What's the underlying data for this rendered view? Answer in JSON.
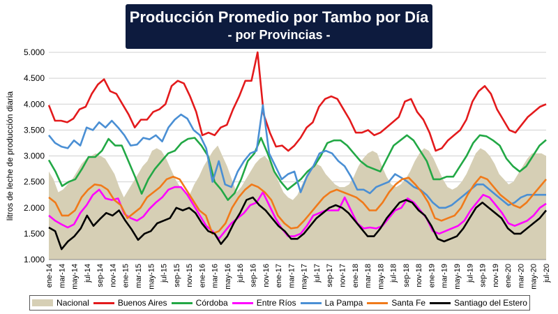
{
  "title": {
    "line1": "Producción Promedio por Tambo por Día",
    "line2": "- por Provincias -"
  },
  "chart_data": {
    "type": "line",
    "ylabel": "litros de leche de producción diaria",
    "xlabel": "",
    "ylim": [
      1000,
      5000
    ],
    "yticks": [
      "1.000",
      "1.500",
      "2.000",
      "2.500",
      "3.000",
      "3.500",
      "4.000",
      "4.500",
      "5.000"
    ],
    "x_tick_labels": [
      "ene-14",
      "mar-14",
      "may-14",
      "jul-14",
      "sep-14",
      "nov-14",
      "ene-15",
      "mar-15",
      "may-15",
      "jul-15",
      "sep-15",
      "nov-15",
      "ene-16",
      "mar-16",
      "may-16",
      "jul-16",
      "sep-16",
      "nov-16",
      "ene-17",
      "mar-17",
      "may-17",
      "jul-17",
      "sep-17",
      "nov-17",
      "ene-18",
      "mar-18",
      "may-18",
      "jul-18",
      "sep-18",
      "nov-18",
      "ene-19",
      "mar-19",
      "may-19",
      "jul-19",
      "sep-19",
      "nov-19",
      "ene-20",
      "mar-20",
      "may-20",
      "jul-20"
    ],
    "grid": true,
    "legend_position": "bottom",
    "series": [
      {
        "name": "Nacional",
        "kind": "area",
        "color": "#d6cfb5",
        "values": [
          2700,
          2550,
          2300,
          2350,
          2450,
          2550,
          2700,
          2850,
          2950,
          3000,
          3050,
          3000,
          2950,
          2800,
          2650,
          2400,
          2200,
          2350,
          2500,
          2650,
          2800,
          2900,
          3100,
          3150,
          3100,
          2950,
          2750,
          2550,
          2400,
          2300,
          2250,
          2450,
          2600,
          2800,
          2950,
          3100,
          3200,
          3000,
          2800,
          2550,
          2300,
          2400,
          2550,
          2700,
          2850,
          2950,
          3000,
          2900,
          2700,
          2500,
          2300,
          2200,
          2150,
          2250,
          2450,
          2650,
          2800,
          2850,
          2800,
          2650,
          2550,
          2450,
          2400,
          2400,
          2450,
          2600,
          2800,
          2950,
          3050,
          3100,
          3050,
          2800,
          2600,
          2450,
          2400,
          2450,
          2550,
          2700,
          2900,
          3050,
          3150,
          3100,
          2950,
          2750,
          2550,
          2400,
          2350,
          2400,
          2500,
          2650,
          2850,
          3050,
          3150,
          3100,
          3000,
          2850,
          2650,
          2550,
          2450,
          2500,
          2650,
          2800,
          2950,
          3050,
          3050,
          3050,
          3000
        ]
      },
      {
        "name": "Buenos Aires",
        "kind": "line",
        "color": "#e31a1c",
        "values": [
          3980,
          3680,
          3680,
          3650,
          3720,
          3900,
          3950,
          4200,
          4380,
          4480,
          4250,
          4200,
          4000,
          3800,
          3550,
          3700,
          3700,
          3850,
          3900,
          4000,
          4350,
          4450,
          4400,
          4150,
          3850,
          3400,
          3450,
          3400,
          3550,
          3600,
          3900,
          4150,
          4450,
          4450,
          5000,
          3800,
          3450,
          3180,
          3200,
          3100,
          3200,
          3350,
          3550,
          3650,
          3950,
          4100,
          4150,
          4100,
          3900,
          3700,
          3450,
          3450,
          3500,
          3400,
          3450,
          3550,
          3650,
          3750,
          4050,
          4100,
          3850,
          3700,
          3450,
          3100,
          3150,
          3300,
          3400,
          3500,
          3700,
          4050,
          4250,
          4350,
          4200,
          3900,
          3700,
          3500,
          3450,
          3600,
          3750,
          3850,
          3950,
          4000
        ]
      },
      {
        "name": "Córdoba",
        "kind": "line",
        "color": "#22a845",
        "values": [
          2920,
          2700,
          2420,
          2500,
          2550,
          2750,
          2980,
          2980,
          3100,
          3330,
          3200,
          3200,
          2900,
          2600,
          2270,
          2550,
          2750,
          2900,
          3050,
          3100,
          3250,
          3330,
          3350,
          3200,
          3000,
          2500,
          2350,
          2150,
          2280,
          2550,
          2900,
          3050,
          3350,
          3050,
          2700,
          2500,
          2350,
          2450,
          2550,
          2700,
          2800,
          3000,
          3250,
          3300,
          3300,
          3200,
          3050,
          2900,
          2800,
          2750,
          2700,
          2950,
          3200,
          3300,
          3400,
          3300,
          3100,
          2900,
          2550,
          2550,
          2600,
          2600,
          2800,
          3000,
          3250,
          3400,
          3380,
          3300,
          3200,
          2950,
          2800,
          2700,
          2800,
          3000,
          3200,
          3310
        ]
      },
      {
        "name": "Entre Ríos",
        "kind": "line",
        "color": "#ff00ff",
        "values": [
          1850,
          1750,
          1680,
          1620,
          1680,
          1900,
          2050,
          2250,
          2350,
          2180,
          2150,
          2180,
          1880,
          1800,
          1750,
          1830,
          1980,
          2100,
          2200,
          2350,
          2400,
          2400,
          2250,
          2050,
          1850,
          1650,
          1550,
          1400,
          1550,
          1700,
          1800,
          1900,
          2050,
          2100,
          2300,
          2050,
          1800,
          1600,
          1450,
          1450,
          1500,
          1650,
          1850,
          1900,
          1950,
          1950,
          1950,
          2200,
          1950,
          1700,
          1600,
          1620,
          1600,
          1650,
          1800,
          1950,
          2000,
          2180,
          2100,
          1950,
          1800,
          1550,
          1500,
          1550,
          1600,
          1650,
          1750,
          1950,
          2100,
          2250,
          2200,
          2050,
          1900,
          1700,
          1650,
          1700,
          1750,
          1850,
          2000,
          2080
        ]
      },
      {
        "name": "La Pampa",
        "kind": "line",
        "color": "#4a8fd4",
        "values": [
          3400,
          3250,
          3180,
          3150,
          3300,
          3200,
          3550,
          3500,
          3650,
          3550,
          3680,
          3550,
          3400,
          3200,
          3220,
          3350,
          3320,
          3400,
          3280,
          3550,
          3700,
          3800,
          3720,
          3500,
          3400,
          3150,
          2500,
          2900,
          2450,
          2400,
          2700,
          2900,
          3050,
          3100,
          3980,
          3050,
          2800,
          2550,
          2650,
          2700,
          2300,
          2600,
          2800,
          3050,
          3100,
          3050,
          2900,
          2800,
          2600,
          2350,
          2350,
          2280,
          2400,
          2450,
          2500,
          2650,
          2580,
          2500,
          2400,
          2350,
          2250,
          2100,
          2000,
          2000,
          2050,
          2150,
          2250,
          2350,
          2450,
          2450,
          2350,
          2250,
          2150,
          2050,
          2100,
          2200,
          2250,
          2250,
          2250,
          2250
        ]
      },
      {
        "name": "Santa Fe",
        "kind": "line",
        "color": "#f07a1a",
        "values": [
          2200,
          2100,
          1850,
          1850,
          1950,
          2200,
          2350,
          2450,
          2430,
          2350,
          2150,
          2050,
          1800,
          1900,
          2000,
          2200,
          2300,
          2400,
          2550,
          2600,
          2550,
          2350,
          2150,
          1950,
          1850,
          1500,
          1550,
          1700,
          2000,
          2200,
          2350,
          2450,
          2400,
          2300,
          2150,
          1850,
          1700,
          1600,
          1620,
          1750,
          1900,
          2050,
          2200,
          2300,
          2350,
          2300,
          2250,
          2200,
          2100,
          1950,
          1950,
          2100,
          2300,
          2450,
          2550,
          2580,
          2450,
          2300,
          2100,
          1800,
          1750,
          1800,
          1850,
          2000,
          2250,
          2450,
          2600,
          2550,
          2400,
          2250,
          2150,
          2050,
          2000,
          2100,
          2250,
          2400,
          2550
        ]
      },
      {
        "name": "Santiago del Estero",
        "kind": "line",
        "color": "#000000",
        "values": [
          1620,
          1550,
          1200,
          1350,
          1450,
          1600,
          1850,
          1650,
          1780,
          1900,
          1850,
          1950,
          1750,
          1580,
          1380,
          1500,
          1550,
          1700,
          1750,
          1800,
          2000,
          1950,
          2000,
          1900,
          1700,
          1550,
          1500,
          1300,
          1450,
          1700,
          1900,
          2150,
          2200,
          2050,
          1950,
          1800,
          1650,
          1550,
          1400,
          1400,
          1500,
          1650,
          1800,
          1900,
          2000,
          2050,
          2000,
          1900,
          1750,
          1600,
          1450,
          1450,
          1600,
          1800,
          1950,
          2100,
          2150,
          2100,
          1950,
          1850,
          1650,
          1400,
          1350,
          1400,
          1450,
          1600,
          1800,
          2000,
          2100,
          2000,
          1900,
          1800,
          1600,
          1500,
          1500,
          1600,
          1700,
          1800,
          1950
        ]
      }
    ]
  }
}
